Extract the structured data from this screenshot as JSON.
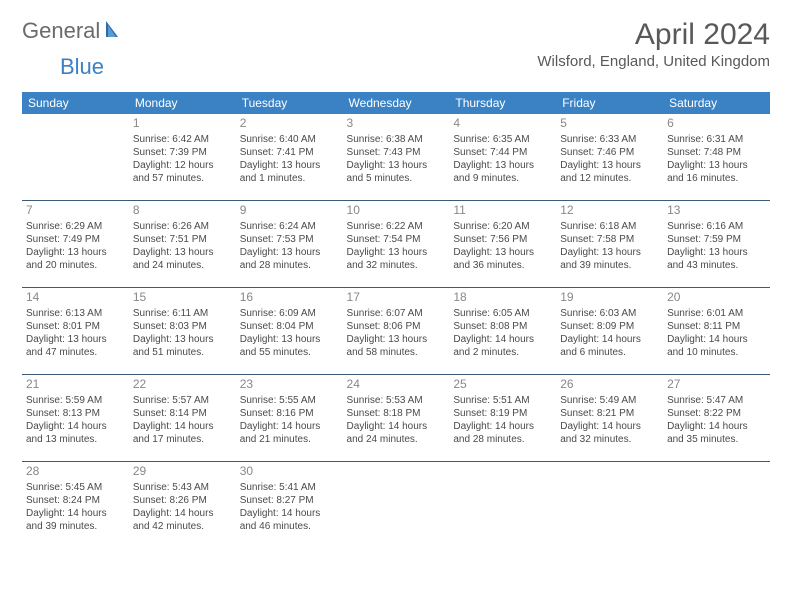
{
  "logo": {
    "part1": "General",
    "part2": "Blue"
  },
  "title": "April 2024",
  "location": "Wilsford, England, United Kingdom",
  "colors": {
    "header_bg": "#3b82c4",
    "header_text": "#ffffff",
    "border": "#3b5a7a",
    "body_text": "#4a4a4a",
    "daynum": "#888888",
    "title_text": "#595959"
  },
  "weekdays": [
    "Sunday",
    "Monday",
    "Tuesday",
    "Wednesday",
    "Thursday",
    "Friday",
    "Saturday"
  ],
  "weeks": [
    [
      null,
      {
        "n": "1",
        "sr": "Sunrise: 6:42 AM",
        "ss": "Sunset: 7:39 PM",
        "d1": "Daylight: 12 hours",
        "d2": "and 57 minutes."
      },
      {
        "n": "2",
        "sr": "Sunrise: 6:40 AM",
        "ss": "Sunset: 7:41 PM",
        "d1": "Daylight: 13 hours",
        "d2": "and 1 minutes."
      },
      {
        "n": "3",
        "sr": "Sunrise: 6:38 AM",
        "ss": "Sunset: 7:43 PM",
        "d1": "Daylight: 13 hours",
        "d2": "and 5 minutes."
      },
      {
        "n": "4",
        "sr": "Sunrise: 6:35 AM",
        "ss": "Sunset: 7:44 PM",
        "d1": "Daylight: 13 hours",
        "d2": "and 9 minutes."
      },
      {
        "n": "5",
        "sr": "Sunrise: 6:33 AM",
        "ss": "Sunset: 7:46 PM",
        "d1": "Daylight: 13 hours",
        "d2": "and 12 minutes."
      },
      {
        "n": "6",
        "sr": "Sunrise: 6:31 AM",
        "ss": "Sunset: 7:48 PM",
        "d1": "Daylight: 13 hours",
        "d2": "and 16 minutes."
      }
    ],
    [
      {
        "n": "7",
        "sr": "Sunrise: 6:29 AM",
        "ss": "Sunset: 7:49 PM",
        "d1": "Daylight: 13 hours",
        "d2": "and 20 minutes."
      },
      {
        "n": "8",
        "sr": "Sunrise: 6:26 AM",
        "ss": "Sunset: 7:51 PM",
        "d1": "Daylight: 13 hours",
        "d2": "and 24 minutes."
      },
      {
        "n": "9",
        "sr": "Sunrise: 6:24 AM",
        "ss": "Sunset: 7:53 PM",
        "d1": "Daylight: 13 hours",
        "d2": "and 28 minutes."
      },
      {
        "n": "10",
        "sr": "Sunrise: 6:22 AM",
        "ss": "Sunset: 7:54 PM",
        "d1": "Daylight: 13 hours",
        "d2": "and 32 minutes."
      },
      {
        "n": "11",
        "sr": "Sunrise: 6:20 AM",
        "ss": "Sunset: 7:56 PM",
        "d1": "Daylight: 13 hours",
        "d2": "and 36 minutes."
      },
      {
        "n": "12",
        "sr": "Sunrise: 6:18 AM",
        "ss": "Sunset: 7:58 PM",
        "d1": "Daylight: 13 hours",
        "d2": "and 39 minutes."
      },
      {
        "n": "13",
        "sr": "Sunrise: 6:16 AM",
        "ss": "Sunset: 7:59 PM",
        "d1": "Daylight: 13 hours",
        "d2": "and 43 minutes."
      }
    ],
    [
      {
        "n": "14",
        "sr": "Sunrise: 6:13 AM",
        "ss": "Sunset: 8:01 PM",
        "d1": "Daylight: 13 hours",
        "d2": "and 47 minutes."
      },
      {
        "n": "15",
        "sr": "Sunrise: 6:11 AM",
        "ss": "Sunset: 8:03 PM",
        "d1": "Daylight: 13 hours",
        "d2": "and 51 minutes."
      },
      {
        "n": "16",
        "sr": "Sunrise: 6:09 AM",
        "ss": "Sunset: 8:04 PM",
        "d1": "Daylight: 13 hours",
        "d2": "and 55 minutes."
      },
      {
        "n": "17",
        "sr": "Sunrise: 6:07 AM",
        "ss": "Sunset: 8:06 PM",
        "d1": "Daylight: 13 hours",
        "d2": "and 58 minutes."
      },
      {
        "n": "18",
        "sr": "Sunrise: 6:05 AM",
        "ss": "Sunset: 8:08 PM",
        "d1": "Daylight: 14 hours",
        "d2": "and 2 minutes."
      },
      {
        "n": "19",
        "sr": "Sunrise: 6:03 AM",
        "ss": "Sunset: 8:09 PM",
        "d1": "Daylight: 14 hours",
        "d2": "and 6 minutes."
      },
      {
        "n": "20",
        "sr": "Sunrise: 6:01 AM",
        "ss": "Sunset: 8:11 PM",
        "d1": "Daylight: 14 hours",
        "d2": "and 10 minutes."
      }
    ],
    [
      {
        "n": "21",
        "sr": "Sunrise: 5:59 AM",
        "ss": "Sunset: 8:13 PM",
        "d1": "Daylight: 14 hours",
        "d2": "and 13 minutes."
      },
      {
        "n": "22",
        "sr": "Sunrise: 5:57 AM",
        "ss": "Sunset: 8:14 PM",
        "d1": "Daylight: 14 hours",
        "d2": "and 17 minutes."
      },
      {
        "n": "23",
        "sr": "Sunrise: 5:55 AM",
        "ss": "Sunset: 8:16 PM",
        "d1": "Daylight: 14 hours",
        "d2": "and 21 minutes."
      },
      {
        "n": "24",
        "sr": "Sunrise: 5:53 AM",
        "ss": "Sunset: 8:18 PM",
        "d1": "Daylight: 14 hours",
        "d2": "and 24 minutes."
      },
      {
        "n": "25",
        "sr": "Sunrise: 5:51 AM",
        "ss": "Sunset: 8:19 PM",
        "d1": "Daylight: 14 hours",
        "d2": "and 28 minutes."
      },
      {
        "n": "26",
        "sr": "Sunrise: 5:49 AM",
        "ss": "Sunset: 8:21 PM",
        "d1": "Daylight: 14 hours",
        "d2": "and 32 minutes."
      },
      {
        "n": "27",
        "sr": "Sunrise: 5:47 AM",
        "ss": "Sunset: 8:22 PM",
        "d1": "Daylight: 14 hours",
        "d2": "and 35 minutes."
      }
    ],
    [
      {
        "n": "28",
        "sr": "Sunrise: 5:45 AM",
        "ss": "Sunset: 8:24 PM",
        "d1": "Daylight: 14 hours",
        "d2": "and 39 minutes."
      },
      {
        "n": "29",
        "sr": "Sunrise: 5:43 AM",
        "ss": "Sunset: 8:26 PM",
        "d1": "Daylight: 14 hours",
        "d2": "and 42 minutes."
      },
      {
        "n": "30",
        "sr": "Sunrise: 5:41 AM",
        "ss": "Sunset: 8:27 PM",
        "d1": "Daylight: 14 hours",
        "d2": "and 46 minutes."
      },
      null,
      null,
      null,
      null
    ]
  ]
}
